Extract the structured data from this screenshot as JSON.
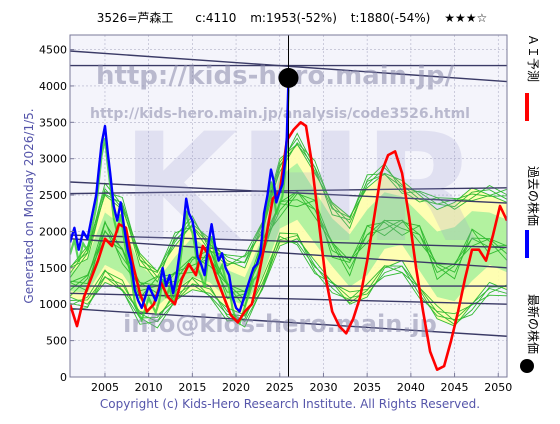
{
  "header": {
    "ticker": "3526=芦森工",
    "current": "c:4110",
    "mid": "m:1953(-52%)",
    "target": "t:1880(-54%)",
    "rating": "★★★☆"
  },
  "side_text": "Generated on Monday 2026/1/5.",
  "watermarks": {
    "url": "http://kids-hero.main.jp/",
    "analysis_url": "http://kids-hero.main.jp/analysis/code3526.html",
    "big": "KHR",
    "email": "info@kids-hero.main.jp"
  },
  "legend": {
    "forecast": "ＡＩ予測",
    "past": "過去の株価",
    "latest": "最新の株価"
  },
  "copyright": "Copyright (c) Kids-Hero Research Institute. All Rights Reserved.",
  "colors": {
    "frame": "#7a7a99",
    "grid": "#b0b0c8",
    "price": "#0000ff",
    "forecast": "#ff0000",
    "band_green": "#33bb33",
    "band_fill_green": "#99ee99",
    "band_fill_yellow": "#ffffaa",
    "trend": "#3a3a66",
    "watermark": "#8888aa",
    "latest_marker": "#000000"
  },
  "chart_data": {
    "type": "line",
    "xlim": [
      2001,
      2051
    ],
    "ylim": [
      0,
      4700
    ],
    "x_ticks": [
      2005,
      2010,
      2015,
      2020,
      2025,
      2030,
      2035,
      2040,
      2045,
      2050
    ],
    "y_ticks": [
      0,
      500,
      1000,
      1500,
      2000,
      2500,
      3000,
      3500,
      4000,
      4500
    ],
    "grid": true,
    "latest_point": {
      "x": 2026.0,
      "y": 4110
    },
    "series": [
      {
        "name": "過去の株価",
        "x": [
          2001.0,
          2001.5,
          2002.0,
          2002.5,
          2003.0,
          2003.5,
          2004.0,
          2004.3,
          2004.6,
          2005.0,
          2005.3,
          2005.6,
          2006.0,
          2006.4,
          2006.8,
          2007.2,
          2007.6,
          2008.0,
          2008.4,
          2008.8,
          2009.2,
          2009.6,
          2010.0,
          2010.4,
          2010.8,
          2011.2,
          2011.6,
          2012.0,
          2012.4,
          2012.8,
          2013.2,
          2013.6,
          2014.0,
          2014.3,
          2014.6,
          2015.0,
          2015.3,
          2015.6,
          2016.0,
          2016.4,
          2016.8,
          2017.2,
          2017.6,
          2018.0,
          2018.4,
          2018.8,
          2019.2,
          2019.6,
          2020.0,
          2020.4,
          2020.8,
          2021.2,
          2021.6,
          2022.0,
          2022.4,
          2022.8,
          2023.2,
          2023.6,
          2024.0,
          2024.3,
          2024.6,
          2025.0,
          2025.3,
          2025.6,
          2025.8,
          2026.0
        ],
        "y": [
          1850,
          2050,
          1750,
          2000,
          1900,
          2200,
          2500,
          2850,
          3200,
          3450,
          3100,
          2800,
          2350,
          2150,
          2400,
          2050,
          1750,
          1550,
          1200,
          1050,
          950,
          1100,
          1250,
          1150,
          1050,
          1200,
          1500,
          1250,
          1400,
          1150,
          1400,
          1750,
          2100,
          2450,
          2250,
          2150,
          1950,
          1650,
          1550,
          1400,
          1800,
          2100,
          1800,
          1600,
          1700,
          1500,
          1400,
          1100,
          950,
          900,
          1050,
          1200,
          1350,
          1500,
          1550,
          1700,
          2250,
          2500,
          2850,
          2700,
          2400,
          2550,
          2650,
          2950,
          3300,
          4110
        ]
      },
      {
        "name": "ＡＩ予測",
        "x": [
          2001.0,
          2001.8,
          2002.6,
          2003.4,
          2004.2,
          2005.0,
          2005.8,
          2006.6,
          2007.4,
          2008.2,
          2009.0,
          2009.8,
          2010.6,
          2011.4,
          2012.2,
          2013.0,
          2013.8,
          2014.6,
          2015.4,
          2016.2,
          2017.0,
          2017.8,
          2018.6,
          2019.4,
          2020.2,
          2021.0,
          2021.8,
          2022.6,
          2023.4,
          2024.2,
          2025.0,
          2025.8,
          2026.6,
          2027.4,
          2028.0,
          2028.6,
          2029.4,
          2030.2,
          2031.0,
          2031.8,
          2032.6,
          2033.4,
          2034.2,
          2035.0,
          2035.8,
          2036.6,
          2037.4,
          2038.2,
          2039.0,
          2039.8,
          2040.6,
          2041.4,
          2042.2,
          2043.0,
          2043.8,
          2044.6,
          2045.4,
          2046.2,
          2047.0,
          2047.8,
          2048.6,
          2049.4,
          2050.2,
          2051.0
        ],
        "y": [
          1000,
          700,
          1100,
          1350,
          1600,
          1900,
          1800,
          2100,
          2050,
          1550,
          1150,
          900,
          1000,
          1300,
          1100,
          1000,
          1350,
          1550,
          1400,
          1800,
          1650,
          1350,
          1100,
          850,
          750,
          900,
          1000,
          1400,
          1900,
          2450,
          2550,
          3250,
          3400,
          3500,
          3450,
          3000,
          2200,
          1400,
          900,
          700,
          600,
          800,
          1100,
          1600,
          2200,
          2800,
          3050,
          3100,
          2800,
          2200,
          1500,
          900,
          350,
          100,
          150,
          500,
          900,
          1350,
          1750,
          1750,
          1600,
          1950,
          2350,
          2150
        ]
      }
    ],
    "bands": {
      "upper": {
        "x": [
          2001,
          2003,
          2005,
          2007,
          2009,
          2011,
          2013,
          2015,
          2017,
          2019,
          2021,
          2023,
          2025,
          2027,
          2029,
          2031,
          2033,
          2035,
          2037,
          2039,
          2041,
          2043,
          2045,
          2047,
          2049,
          2051
        ],
        "y": [
          1500,
          1800,
          2500,
          2300,
          1700,
          1450,
          1800,
          2100,
          1900,
          1600,
          1500,
          2100,
          3000,
          3200,
          2800,
          2400,
          2200,
          2600,
          2800,
          2700,
          2500,
          2300,
          2400,
          2600,
          2500,
          2400
        ]
      },
      "lower": {
        "x": [
          2001,
          2003,
          2005,
          2007,
          2009,
          2011,
          2013,
          2015,
          2017,
          2019,
          2021,
          2023,
          2025,
          2027,
          2029,
          2031,
          2033,
          2035,
          2037,
          2039,
          2041,
          2043,
          2045,
          2047,
          2049,
          2051
        ],
        "y": [
          1100,
          1000,
          1300,
          1200,
          900,
          850,
          1050,
          1200,
          1150,
          950,
          850,
          1200,
          1800,
          1900,
          1600,
          1300,
          1000,
          1100,
          1500,
          1600,
          1200,
          800,
          700,
          1000,
          1300,
          1200
        ]
      }
    },
    "trend_lines": [
      {
        "x": [
          2001,
          2051
        ],
        "y": [
          4480,
          4060
        ]
      },
      {
        "x": [
          2001,
          2051
        ],
        "y": [
          4280,
          4280
        ]
      },
      {
        "x": [
          2001,
          2051
        ],
        "y": [
          2680,
          2390
        ]
      },
      {
        "x": [
          2001,
          2051
        ],
        "y": [
          2520,
          2600
        ]
      },
      {
        "x": [
          2001,
          2051
        ],
        "y": [
          1950,
          1780
        ]
      },
      {
        "x": [
          2001,
          2051
        ],
        "y": [
          1900,
          1500
        ]
      },
      {
        "x": [
          2001,
          2051
        ],
        "y": [
          1150,
          1000
        ]
      },
      {
        "x": [
          2001,
          2051
        ],
        "y": [
          940,
          560
        ]
      },
      {
        "x": [
          2001,
          2051
        ],
        "y": [
          1250,
          1250
        ]
      }
    ]
  }
}
